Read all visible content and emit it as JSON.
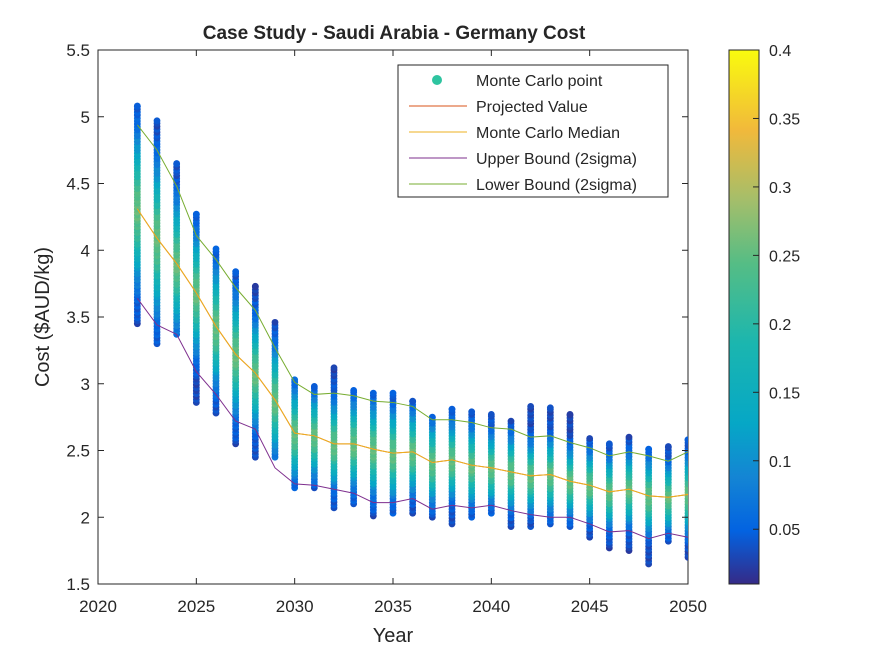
{
  "chart_data": {
    "type": "scatter",
    "title": "Case Study - Saudi Arabia - Germany Cost",
    "xlabel": "Year",
    "ylabel": "Cost ($AUD/kg)",
    "xlim": [
      2020,
      2050
    ],
    "ylim": [
      1.5,
      5.5
    ],
    "x_ticks": [
      "2020",
      "2025",
      "2030",
      "2035",
      "2040",
      "2045",
      "2050"
    ],
    "y_ticks": [
      "1.5",
      "2",
      "2.5",
      "3",
      "3.5",
      "4",
      "4.5",
      "5",
      "5.5"
    ],
    "legend_placement": "top-right",
    "grid": false,
    "colorbar": {
      "range": [
        0.01,
        0.4
      ],
      "ticks": [
        "0.05",
        "0.1",
        "0.15",
        "0.2",
        "0.25",
        "0.3",
        "0.35",
        "0.4"
      ],
      "colormap": "parula"
    },
    "x": [
      2022,
      2023,
      2024,
      2025,
      2026,
      2027,
      2028,
      2029,
      2030,
      2031,
      2032,
      2033,
      2034,
      2035,
      2036,
      2037,
      2038,
      2039,
      2040,
      2041,
      2042,
      2043,
      2044,
      2045,
      2046,
      2047,
      2048,
      2049,
      2050
    ],
    "series": [
      {
        "name": "Monte Carlo point",
        "color": "#2ec4a0",
        "kind": "scatter",
        "min": [
          3.45,
          3.3,
          3.37,
          2.86,
          2.78,
          2.55,
          2.45,
          2.45,
          2.22,
          2.22,
          2.07,
          2.1,
          2.01,
          2.03,
          2.03,
          2.0,
          1.95,
          2.0,
          2.03,
          1.93,
          1.93,
          1.95,
          1.93,
          1.85,
          1.77,
          1.75,
          1.65,
          1.82,
          1.7
        ],
        "max": [
          5.08,
          4.97,
          4.65,
          4.27,
          4.01,
          3.84,
          3.73,
          3.46,
          3.03,
          2.98,
          3.12,
          2.95,
          2.93,
          2.93,
          2.87,
          2.75,
          2.81,
          2.79,
          2.77,
          2.72,
          2.83,
          2.82,
          2.77,
          2.59,
          2.55,
          2.6,
          2.51,
          2.53,
          2.58
        ]
      },
      {
        "name": "Projected Value",
        "color": "#d95319",
        "kind": "line",
        "values": [
          4.31,
          4.09,
          3.9,
          3.68,
          3.43,
          3.22,
          3.08,
          2.88,
          2.63,
          2.61,
          2.55,
          2.55,
          2.51,
          2.48,
          2.49,
          2.41,
          2.43,
          2.39,
          2.37,
          2.34,
          2.31,
          2.32,
          2.27,
          2.24,
          2.19,
          2.21,
          2.16,
          2.15,
          2.17
        ]
      },
      {
        "name": "Monte Carlo Median",
        "color": "#edb120",
        "kind": "line",
        "values": [
          4.31,
          4.09,
          3.9,
          3.68,
          3.43,
          3.22,
          3.08,
          2.88,
          2.63,
          2.61,
          2.55,
          2.55,
          2.51,
          2.48,
          2.49,
          2.41,
          2.43,
          2.39,
          2.37,
          2.34,
          2.31,
          2.32,
          2.27,
          2.24,
          2.19,
          2.21,
          2.16,
          2.15,
          2.17
        ]
      },
      {
        "name": "Upper Bound (2sigma)",
        "color": "#7e2f8e",
        "kind": "line",
        "values": [
          3.64,
          3.44,
          3.37,
          3.09,
          2.92,
          2.72,
          2.66,
          2.37,
          2.25,
          2.24,
          2.21,
          2.18,
          2.11,
          2.11,
          2.14,
          2.06,
          2.09,
          2.07,
          2.09,
          2.05,
          2.02,
          2.0,
          2.0,
          1.95,
          1.89,
          1.9,
          1.84,
          1.88,
          1.85
        ]
      },
      {
        "name": "Lower Bound (2sigma)",
        "color": "#77ac30",
        "kind": "line",
        "values": [
          4.94,
          4.75,
          4.48,
          4.11,
          3.93,
          3.72,
          3.55,
          3.27,
          3.01,
          2.92,
          2.93,
          2.91,
          2.87,
          2.86,
          2.83,
          2.73,
          2.73,
          2.71,
          2.67,
          2.66,
          2.6,
          2.61,
          2.56,
          2.52,
          2.46,
          2.49,
          2.46,
          2.42,
          2.49
        ]
      }
    ]
  }
}
